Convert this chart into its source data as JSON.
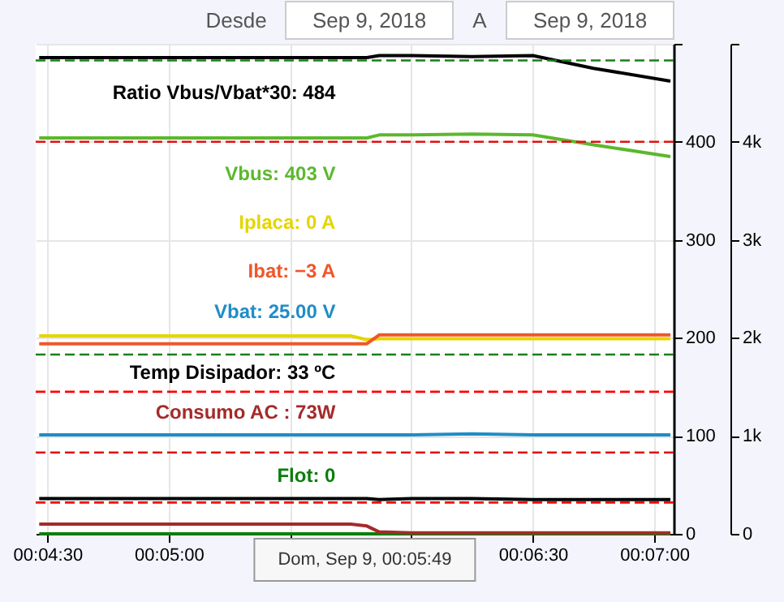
{
  "chart_data": {
    "type": "line",
    "x": [
      0.07444,
      0.09583,
      0.09694,
      0.09778,
      0.1,
      0.10417,
      0.10833,
      0.1125,
      0.11778
    ],
    "series": [
      {
        "color": "#000000",
        "values": [
          486,
          486,
          486,
          488,
          488,
          487,
          488,
          475,
          462
        ]
      },
      {
        "color": "#5cb82e",
        "values": [
          404,
          404,
          404,
          407,
          407,
          408,
          407,
          397,
          385
        ]
      },
      {
        "color": "#e4d500",
        "values": [
          202,
          202,
          198,
          199,
          199,
          199,
          199,
          199,
          199
        ]
      },
      {
        "color": "#f0562a",
        "values": [
          194,
          194,
          194,
          203,
          203,
          203,
          203,
          203,
          203
        ]
      },
      {
        "color": "#1f8dc7",
        "values": [
          101,
          101,
          101,
          101,
          101,
          102,
          101,
          101,
          101
        ]
      },
      {
        "color": "#000000",
        "values": [
          36,
          36,
          36,
          35,
          36,
          36,
          35,
          35,
          35
        ]
      },
      {
        "color": "#a52a2a",
        "axis": "y2",
        "values": [
          100,
          100,
          80,
          20,
          10,
          10,
          10,
          10,
          10
        ]
      },
      {
        "color": "#0b7f0b",
        "values": [
          0,
          0,
          0,
          0,
          0,
          0,
          0,
          0,
          0
        ]
      }
    ],
    "annotations": [
      "Ratio Vbus/Vbat*30: 484",
      "Vbus: 403 V",
      "Iplaca: 0 A",
      "Ibat: −3 A",
      "Vbat: 25.00 V",
      "Temp Disipador: 33 ºC",
      "Consumo AC : 73W",
      "Flot: 0",
      "Dom, Sep 9, 00:05:49",
      "Desde",
      "Sep 9, 2018",
      "A",
      "Sep 9, 2018"
    ],
    "xlim": [
      0.0742,
      0.118
    ],
    "xticks": [
      {
        "value": 0.075,
        "label": "00:04:30"
      },
      {
        "value": 0.083333,
        "label": "00:05:00"
      },
      {
        "value": 0.091667,
        "label": null
      },
      {
        "value": 0.1,
        "label": null
      },
      {
        "value": 0.108333,
        "label": "00:06:30"
      },
      {
        "value": 0.116667,
        "label": "00:07:00"
      }
    ],
    "ylim": [
      0,
      500
    ],
    "yticks": [
      0,
      100,
      200,
      300,
      400,
      {
        "value": 500,
        "label": null
      }
    ],
    "y2lim": [
      0,
      5000
    ],
    "y2ticks": [
      {
        "value": 0,
        "label": "0"
      },
      {
        "value": 1000,
        "label": "1k"
      },
      {
        "value": 2000,
        "label": "2k"
      },
      {
        "value": 3000,
        "label": "3k"
      },
      {
        "value": 4000,
        "label": "4k"
      },
      {
        "value": 5000,
        "label": null
      }
    ],
    "ref_lines": [
      {
        "axis": "y",
        "value": 483,
        "color": "#1a7f1a",
        "line_style": "dashed"
      },
      {
        "axis": "y",
        "value": 400,
        "color": "#e01010",
        "line_style": "dashed"
      },
      {
        "axis": "y",
        "value": 183,
        "color": "#1a7f1a",
        "line_style": "dashed"
      },
      {
        "axis": "y",
        "value": 145,
        "color": "#ff0000",
        "line_style": "dashed"
      },
      {
        "axis": "y",
        "value": 83,
        "color": "#e01010",
        "line_style": "dashed"
      },
      {
        "axis": "y",
        "value": 32,
        "color": "#ff0000",
        "line_style": "dashed"
      }
    ],
    "grid": true,
    "line_style": "solid",
    "marker": "none"
  }
}
